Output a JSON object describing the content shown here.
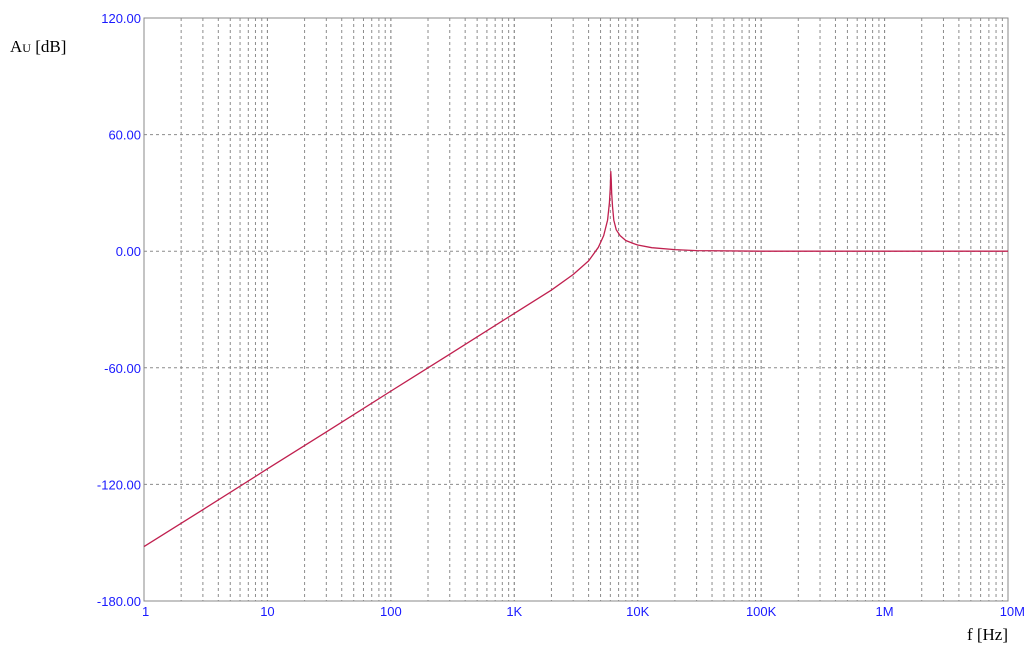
{
  "chart_data": {
    "type": "line",
    "title": "",
    "ylabel": {
      "main": "A",
      "sub": "U",
      "unit": " [dB]"
    },
    "xlabel": "f [Hz]",
    "x_scale": "log",
    "xlim": [
      1,
      10000000
    ],
    "ylim": [
      -180,
      120
    ],
    "grid": true,
    "x_ticks": [
      {
        "value": 1,
        "label": "1"
      },
      {
        "value": 10,
        "label": "10"
      },
      {
        "value": 100,
        "label": "100"
      },
      {
        "value": 1000,
        "label": "1K"
      },
      {
        "value": 10000,
        "label": "10K"
      },
      {
        "value": 100000,
        "label": "100K"
      },
      {
        "value": 1000000,
        "label": "1M"
      },
      {
        "value": 10000000,
        "label": "10M"
      }
    ],
    "y_ticks": [
      {
        "value": 120,
        "label": "120.00"
      },
      {
        "value": 60,
        "label": "60.00"
      },
      {
        "value": 0,
        "label": "0.00"
      },
      {
        "value": -60,
        "label": "-60.00"
      },
      {
        "value": -120,
        "label": "-120.00"
      },
      {
        "value": -180,
        "label": "-180.00"
      }
    ],
    "series": [
      {
        "color": "#c0204f",
        "x": [
          1,
          3,
          10,
          30,
          100,
          300,
          1000,
          2000,
          3000,
          4000,
          4800,
          5300,
          5700,
          5900,
          6000,
          6050,
          6100,
          6150,
          6250,
          6400,
          6700,
          7200,
          8000,
          9000,
          10000,
          13000,
          20000,
          30000,
          100000,
          1000000,
          10000000
        ],
        "y": [
          -152,
          -133,
          -112,
          -93,
          -72,
          -53,
          -32,
          -20,
          -12,
          -5,
          2,
          8,
          16,
          25,
          33,
          41,
          37,
          30,
          23,
          16,
          11,
          8,
          5.5,
          4.2,
          3.2,
          1.8,
          0.8,
          0.3,
          0,
          0,
          0
        ]
      }
    ]
  },
  "colors": {
    "grid": "#8c8c8c",
    "tick_label": "#1a1aff",
    "series": "#c0204f"
  }
}
